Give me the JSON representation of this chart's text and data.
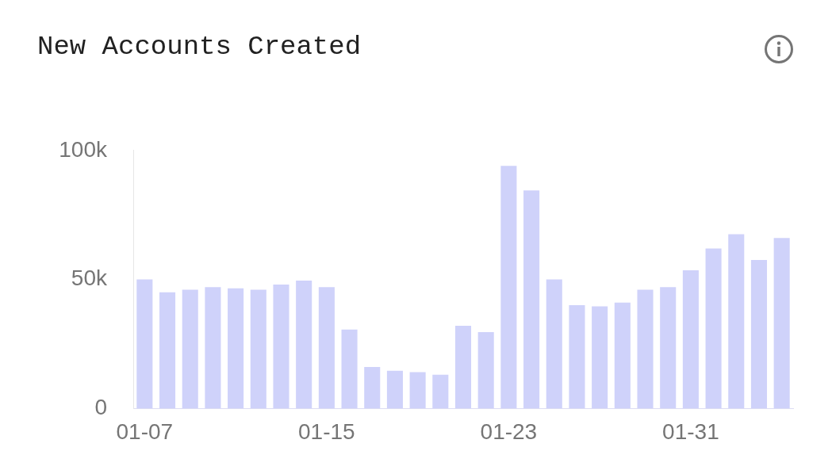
{
  "chart_data": {
    "type": "bar",
    "title": "New Accounts Created",
    "categories": [
      "01-07",
      null,
      null,
      null,
      null,
      null,
      null,
      null,
      "01-15",
      null,
      null,
      null,
      null,
      null,
      null,
      null,
      "01-23",
      null,
      null,
      null,
      null,
      null,
      null,
      null,
      "01-31",
      null,
      null,
      null,
      null
    ],
    "values": [
      50000,
      45000,
      46000,
      47000,
      46500,
      46000,
      48000,
      49500,
      47000,
      30500,
      16000,
      14500,
      14000,
      13000,
      32000,
      29500,
      94000,
      84500,
      50000,
      40000,
      39500,
      41000,
      46000,
      47000,
      53500,
      62000,
      67500,
      57500,
      66000
    ],
    "color": "#cfd2fa",
    "ylim": [
      0,
      100000
    ],
    "yticks": [
      {
        "value": 0,
        "label": "0"
      },
      {
        "value": 50000,
        "label": "50k"
      },
      {
        "value": 100000,
        "label": "100k"
      }
    ],
    "grid": false
  }
}
